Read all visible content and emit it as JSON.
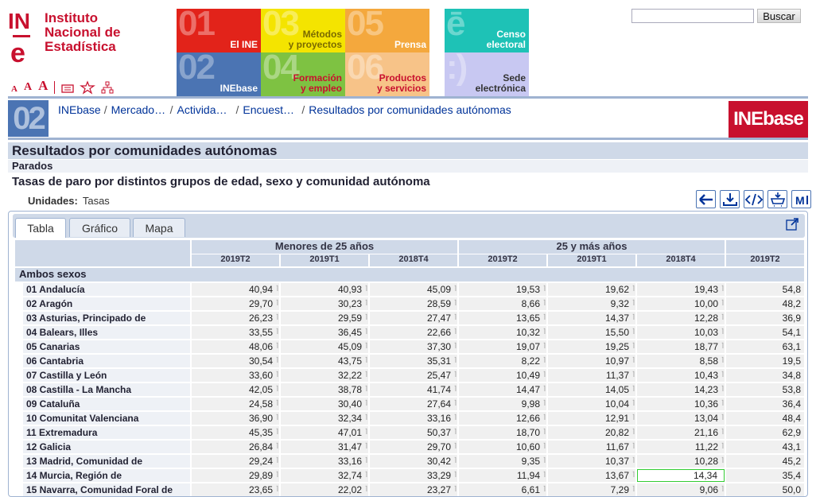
{
  "header": {
    "logo_text": [
      "Instituto",
      "Nacional de",
      "Estadística"
    ],
    "tiles": [
      {
        "num": "01",
        "label": "El INE",
        "color": "#e2231a"
      },
      {
        "num": "03",
        "label": "Métodos\ny proyectos",
        "color": "#f4e400"
      },
      {
        "num": "05",
        "label": "Prensa",
        "color": "#f4a83d"
      },
      {
        "num": "ē",
        "label": "Censo\nelectoral",
        "color": "#1ec2b6"
      },
      {
        "num": "02",
        "label": "INEbase",
        "color": "#4b74b3"
      },
      {
        "num": "04",
        "label": "Formación\ny empleo",
        "color": "#7ec242"
      },
      {
        "num": "06",
        "label": "Productos\ny servicios",
        "color": "#f7c388"
      },
      {
        "num": ":)",
        "label": "Sede\nelectrónica",
        "color": "#c8c8f2"
      }
    ],
    "search_placeholder": "",
    "search_button": "Buscar"
  },
  "breadcrumb": {
    "section_num": "02",
    "items": [
      "INEbase",
      "Mercado…",
      "Activida…",
      "Encuest…",
      "Resultados por comunidades autónomas"
    ],
    "logo": "INEbase"
  },
  "title": "Resultados por comunidades autónomas",
  "subtitle": "Parados",
  "table_title": "Tasas de paro por distintos grupos de edad, sexo y comunidad autónoma",
  "units_label": "Unidades:",
  "units_value": "Tasas",
  "tabs": [
    "Tabla",
    "Gráfico",
    "Mapa"
  ],
  "table": {
    "groups": [
      "Menores de 25 años",
      "25 y más años",
      ""
    ],
    "periods": [
      "2019T2",
      "2019T1",
      "2018T4",
      "2019T2",
      "2019T1",
      "2018T4",
      "2019T2"
    ],
    "section": "Ambos sexos",
    "rows": [
      {
        "label": "01 Andalucía",
        "values": [
          "40,94",
          "40,93",
          "45,09",
          "19,53",
          "19,62",
          "19,43",
          "54,8"
        ]
      },
      {
        "label": "02 Aragón",
        "values": [
          "29,70",
          "30,23",
          "28,59",
          "8,66",
          "9,32",
          "10,00",
          "48,2"
        ]
      },
      {
        "label": "03 Asturias, Principado de",
        "values": [
          "26,23",
          "29,59",
          "27,47",
          "13,65",
          "14,37",
          "12,28",
          "36,9"
        ]
      },
      {
        "label": "04 Balears, Illes",
        "values": [
          "33,55",
          "36,45",
          "22,66",
          "10,32",
          "15,50",
          "10,03",
          "54,1"
        ]
      },
      {
        "label": "05 Canarias",
        "values": [
          "48,06",
          "45,09",
          "37,30",
          "19,07",
          "19,25",
          "18,77",
          "63,1"
        ]
      },
      {
        "label": "06 Cantabria",
        "values": [
          "30,54",
          "43,75",
          "35,31",
          "8,22",
          "10,97",
          "8,58",
          "19,5"
        ]
      },
      {
        "label": "07 Castilla y León",
        "values": [
          "33,60",
          "32,22",
          "25,47",
          "10,49",
          "11,37",
          "10,43",
          "34,8"
        ]
      },
      {
        "label": "08 Castilla - La Mancha",
        "values": [
          "42,05",
          "38,78",
          "41,74",
          "14,47",
          "14,05",
          "14,23",
          "53,8"
        ]
      },
      {
        "label": "09 Cataluña",
        "values": [
          "24,58",
          "30,40",
          "27,64",
          "9,98",
          "10,04",
          "10,36",
          "36,4"
        ]
      },
      {
        "label": "10 Comunitat Valenciana",
        "values": [
          "36,90",
          "32,34",
          "33,16",
          "12,66",
          "12,91",
          "13,04",
          "48,4"
        ]
      },
      {
        "label": "11 Extremadura",
        "values": [
          "45,35",
          "47,01",
          "50,37",
          "18,70",
          "20,82",
          "21,16",
          "62,9"
        ]
      },
      {
        "label": "12 Galicia",
        "values": [
          "26,84",
          "31,47",
          "29,70",
          "10,60",
          "11,67",
          "11,22",
          "43,1"
        ]
      },
      {
        "label": "13 Madrid, Comunidad de",
        "values": [
          "29,24",
          "33,16",
          "30,42",
          "9,35",
          "10,37",
          "10,28",
          "45,2"
        ]
      },
      {
        "label": "14 Murcia, Región de",
        "values": [
          "29,89",
          "32,74",
          "33,29",
          "11,94",
          "13,67",
          "14,34",
          "35,4"
        ]
      },
      {
        "label": "15 Navarra, Comunidad Foral de",
        "values": [
          "23,65",
          "22,02",
          "23,27",
          "6,61",
          "7,29",
          "9,06",
          "50,0"
        ]
      }
    ]
  }
}
